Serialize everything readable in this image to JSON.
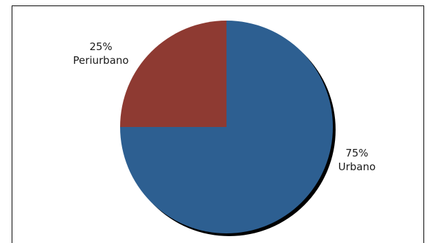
{
  "chart_data": {
    "type": "pie",
    "title": "",
    "slices": [
      {
        "label": "Urbano",
        "value": 75,
        "value_label": "75%",
        "color": "#2d5f91"
      },
      {
        "label": "Periurbano",
        "value": 25,
        "value_label": "25%",
        "color": "#8e3a32"
      }
    ],
    "start_angle_deg": 0,
    "direction": "clockwise",
    "legend": "none",
    "shadow": true
  }
}
